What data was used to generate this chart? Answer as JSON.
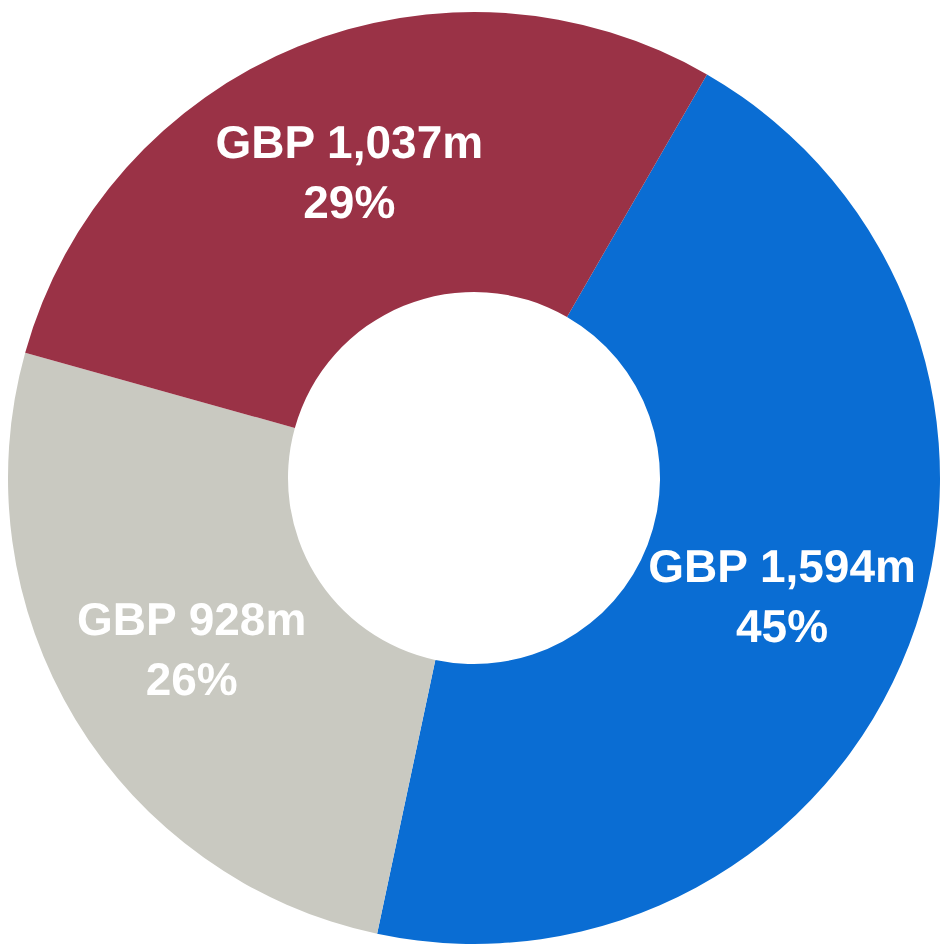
{
  "chart_data": {
    "type": "donut",
    "categories": [
      null,
      null,
      null
    ],
    "values": [
      45,
      26,
      29
    ],
    "colors": [
      "#0a6dd3",
      "#c9c9c1",
      "#9a3246"
    ],
    "value_labels": [
      "45%",
      "26%",
      "29%"
    ],
    "annotations": [
      "GBP 1,594m",
      "GBP 928m",
      "GBP 1,037m"
    ]
  }
}
